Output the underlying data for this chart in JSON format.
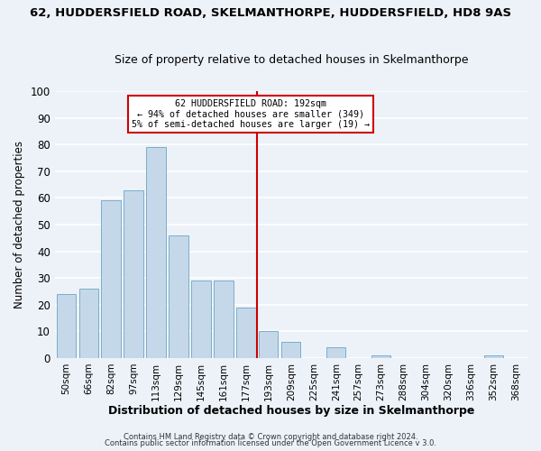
{
  "title": "62, HUDDERSFIELD ROAD, SKELMANTHORPE, HUDDERSFIELD, HD8 9AS",
  "subtitle": "Size of property relative to detached houses in Skelmanthorpe",
  "xlabel": "Distribution of detached houses by size in Skelmanthorpe",
  "ylabel": "Number of detached properties",
  "bar_labels": [
    "50sqm",
    "66sqm",
    "82sqm",
    "97sqm",
    "113sqm",
    "129sqm",
    "145sqm",
    "161sqm",
    "177sqm",
    "193sqm",
    "209sqm",
    "225sqm",
    "241sqm",
    "257sqm",
    "273sqm",
    "288sqm",
    "304sqm",
    "320sqm",
    "336sqm",
    "352sqm",
    "368sqm"
  ],
  "bar_values": [
    24,
    26,
    59,
    63,
    79,
    46,
    29,
    29,
    19,
    10,
    6,
    0,
    4,
    0,
    1,
    0,
    0,
    0,
    0,
    1,
    0
  ],
  "bar_color": "#c5d8ea",
  "bar_edge_color": "#7aaec8",
  "vline_index": 9,
  "vline_color": "#cc0000",
  "annotation_title": "62 HUDDERSFIELD ROAD: 192sqm",
  "annotation_line1": "← 94% of detached houses are smaller (349)",
  "annotation_line2": "5% of semi-detached houses are larger (19) →",
  "annotation_box_color": "#ffffff",
  "annotation_box_edge": "#cc0000",
  "ylim": [
    0,
    100
  ],
  "yticks": [
    0,
    10,
    20,
    30,
    40,
    50,
    60,
    70,
    80,
    90,
    100
  ],
  "footer1": "Contains HM Land Registry data © Crown copyright and database right 2024.",
  "footer2": "Contains public sector information licensed under the Open Government Licence v 3.0.",
  "background_color": "#edf2f9",
  "grid_color": "#ffffff"
}
